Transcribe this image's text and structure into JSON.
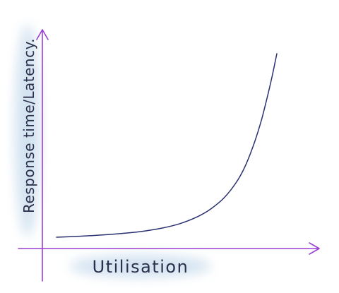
{
  "chart_data": {
    "type": "line",
    "title": "",
    "xlabel": "Utilisation",
    "ylabel": "Response time/Latency.",
    "grid": false,
    "legend": "none",
    "x_ticks": [],
    "y_ticks": [],
    "xlim": [
      0,
      1
    ],
    "ylim": [
      0,
      1
    ],
    "series": [
      {
        "x": [
          0.0,
          0.08,
          0.16,
          0.24,
          0.32,
          0.4,
          0.48,
          0.56,
          0.64,
          0.7,
          0.76,
          0.82,
          0.86,
          0.9,
          0.93,
          0.96,
          0.98,
          1.0
        ],
        "y": [
          0.0,
          0.004,
          0.009,
          0.015,
          0.023,
          0.034,
          0.05,
          0.074,
          0.112,
          0.154,
          0.214,
          0.306,
          0.397,
          0.522,
          0.638,
          0.78,
          0.885,
          1.0
        ]
      }
    ],
    "colors": {
      "axes": "#9b3fd0",
      "curve": "#2a3070",
      "label_highlight": "#cfe0ef"
    }
  }
}
